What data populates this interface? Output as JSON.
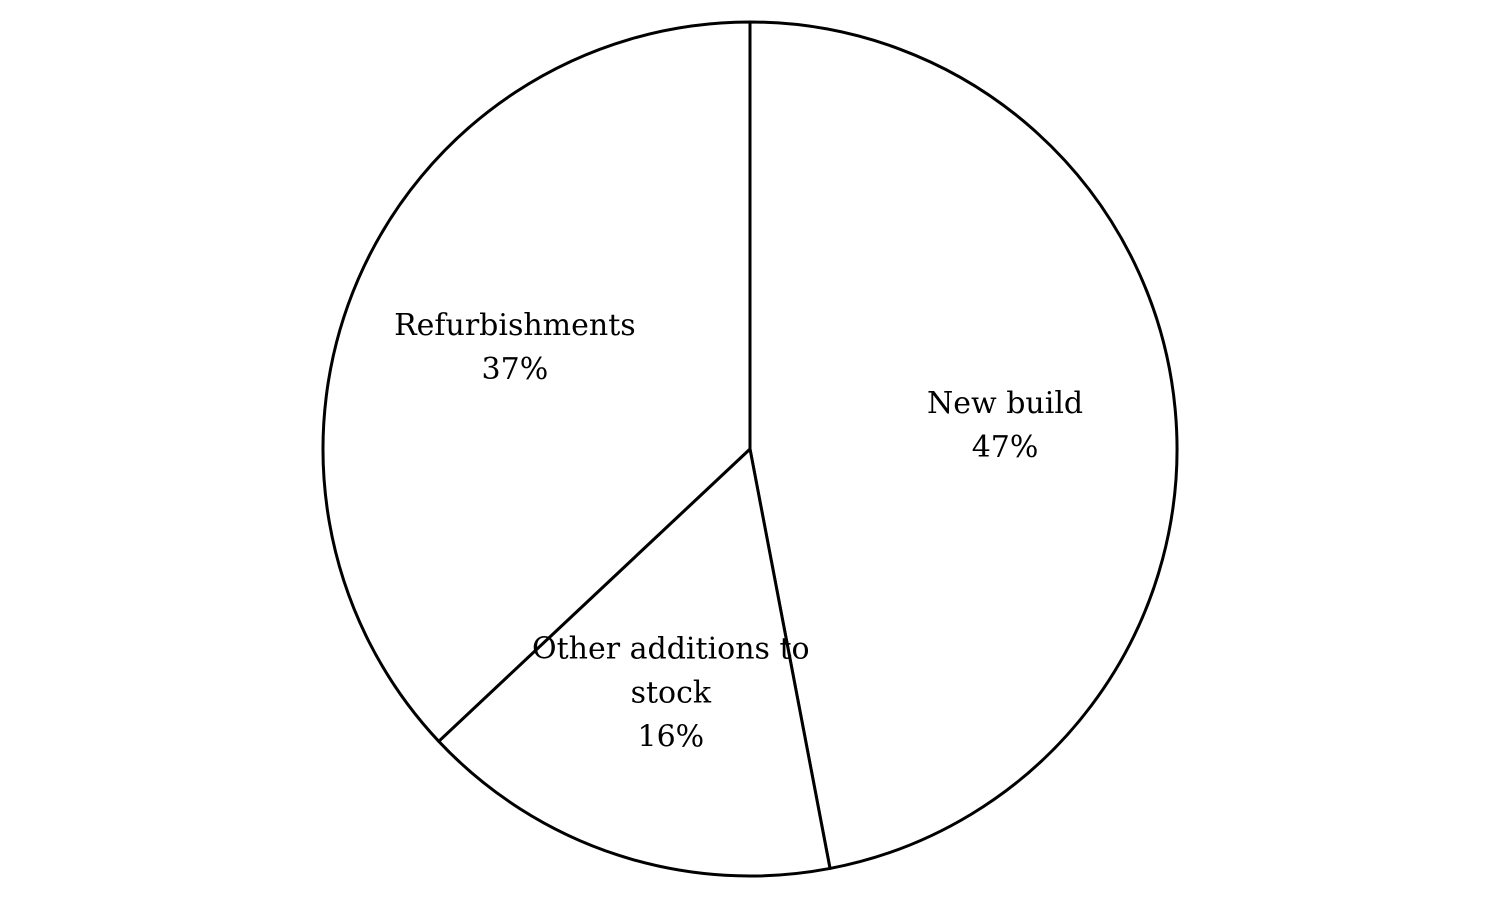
{
  "chart_data": {
    "type": "pie",
    "start_angle_deg": 0,
    "direction": "clockwise",
    "slices": [
      {
        "label_lines": [
          "New build"
        ],
        "value_label": "47%",
        "value": 47
      },
      {
        "label_lines": [
          "Other additions to",
          "stock"
        ],
        "value_label": "16%",
        "value": 16
      },
      {
        "label_lines": [
          "Refurbishments"
        ],
        "value_label": "37%",
        "value": 37
      }
    ],
    "colors": {
      "fill": "#ffffff",
      "stroke": "#000000"
    }
  }
}
